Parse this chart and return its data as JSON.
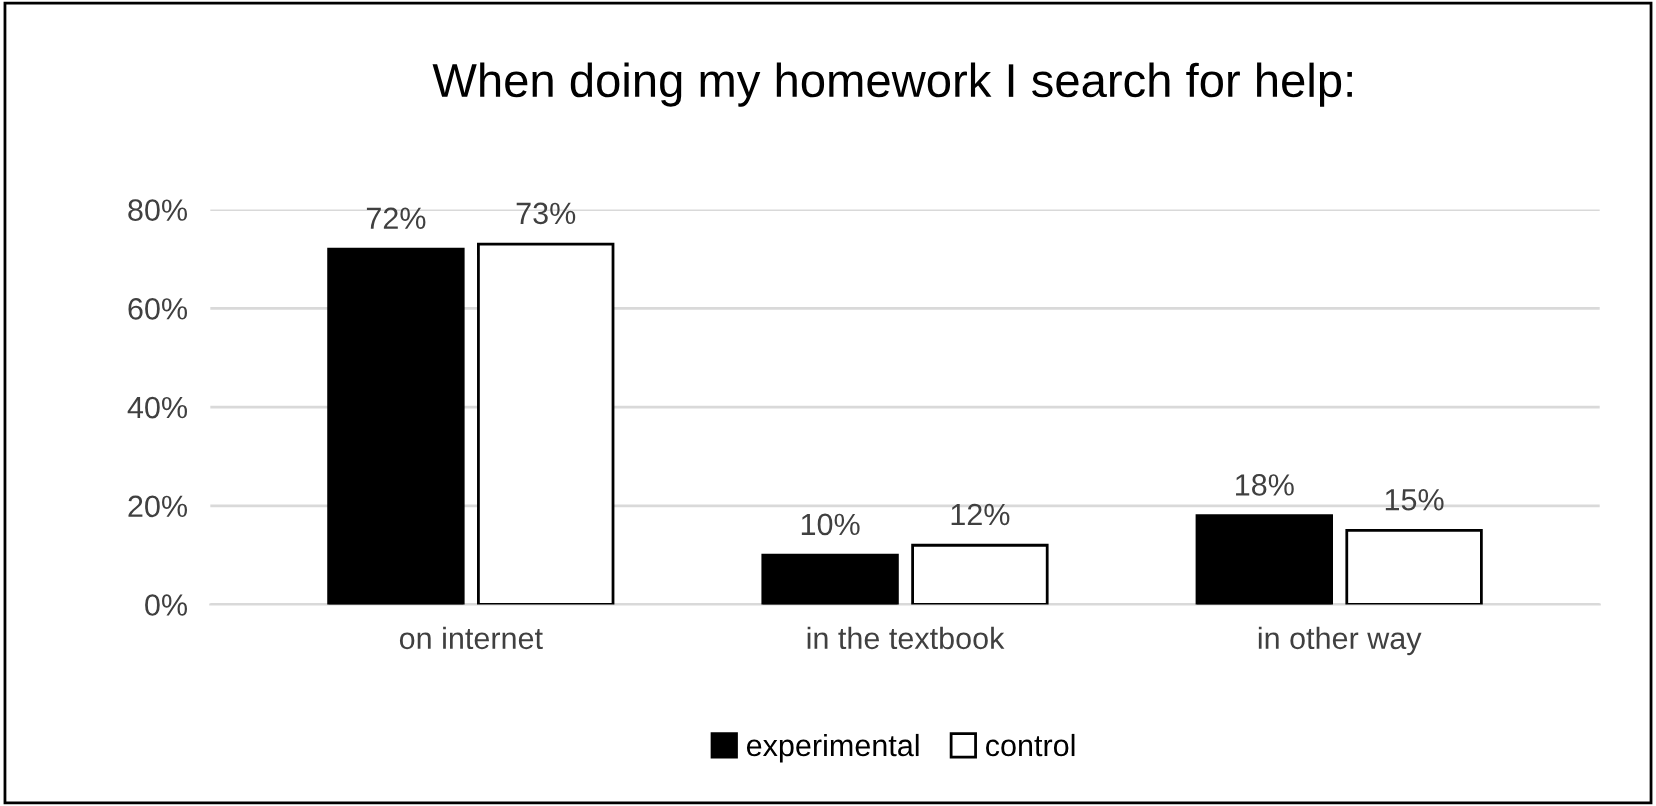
{
  "chart_data": {
    "type": "bar",
    "title": "When doing my homework I search for help:",
    "categories": [
      "on internet",
      "in the textbook",
      "in other way"
    ],
    "series": [
      {
        "name": "experimental",
        "color": "#000000",
        "values": [
          72,
          10,
          18
        ],
        "value_labels": [
          "72%",
          "10%",
          "18%"
        ]
      },
      {
        "name": "control",
        "color": "#ffffff",
        "values": [
          73,
          12,
          15
        ],
        "value_labels": [
          "73%",
          "12%",
          "15%"
        ]
      }
    ],
    "ylim": [
      0,
      80
    ],
    "yticks": [
      {
        "value": 0,
        "label": "0%"
      },
      {
        "value": 20,
        "label": "20%"
      },
      {
        "value": 40,
        "label": "40%"
      },
      {
        "value": 60,
        "label": "60%"
      },
      {
        "value": 80,
        "label": "80%"
      }
    ],
    "grid": "y",
    "legend": "bottom"
  }
}
